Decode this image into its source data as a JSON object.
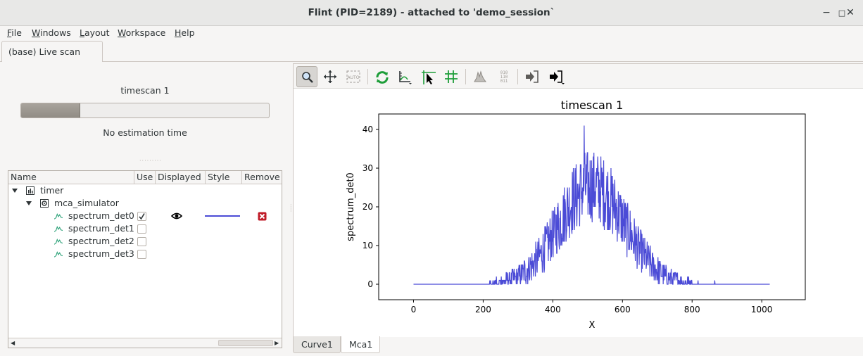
{
  "window": {
    "title": "Flint (PID=2189) - attached to 'demo_session`",
    "minimize": "−",
    "maximize": "□",
    "close": "✕"
  },
  "menu": {
    "file": {
      "u": "F",
      "rest": "ile"
    },
    "windows": {
      "u": "W",
      "rest": "indows"
    },
    "layout": {
      "u": "L",
      "rest": "ayout"
    },
    "workspace": {
      "u": "W",
      "rest": "orkspace"
    },
    "help": {
      "u": "H",
      "rest": "elp"
    }
  },
  "outer_tab": {
    "label": "(base) Live scan"
  },
  "scan": {
    "title": "timescan 1",
    "progress_fraction": 0.24,
    "estimation": "No estimation time"
  },
  "tree": {
    "headers": {
      "name": "Name",
      "use": "Use",
      "displayed": "Displayed",
      "style": "Style",
      "remove": "Remove"
    },
    "timer": "timer",
    "mca_simulator": "mca_simulator",
    "items": [
      {
        "label": "spectrum_det0",
        "use": true
      },
      {
        "label": "spectrum_det1",
        "use": false
      },
      {
        "label": "spectrum_det2",
        "use": false
      },
      {
        "label": "spectrum_det3",
        "use": false
      }
    ],
    "style_color": "#4b4bd6"
  },
  "toolbar": {
    "icons": [
      "zoom-icon",
      "pan-icon",
      "auto-scale-icon",
      "refresh-icon",
      "axes-icon",
      "crosshair-cursor-icon",
      "grid-icon",
      "histogram-icon",
      "binary-data-icon",
      "import-icon",
      "export-icon"
    ],
    "auto_text": "AUTO",
    "binary_text": [
      "010",
      "110",
      "011"
    ]
  },
  "chart_data": {
    "type": "line",
    "title": "timescan 1",
    "xlabel": "X",
    "ylabel": "spectrum_det0",
    "xlim": [
      -100,
      1125
    ],
    "ylim": [
      -4,
      44
    ],
    "xticks": [
      0,
      200,
      400,
      600,
      800,
      1000
    ],
    "yticks": [
      0,
      10,
      20,
      30,
      40
    ],
    "series": [
      {
        "color": "#4b4bd6",
        "x_range": [
          0,
          1023
        ],
        "shape": "noisy gaussian",
        "center": 512,
        "sigma": 95,
        "peak": 41,
        "max_point": [
          490,
          41
        ]
      }
    ]
  },
  "bottom_tabs": [
    {
      "label": "Curve1",
      "active": false
    },
    {
      "label": "Mca1",
      "active": true
    }
  ]
}
